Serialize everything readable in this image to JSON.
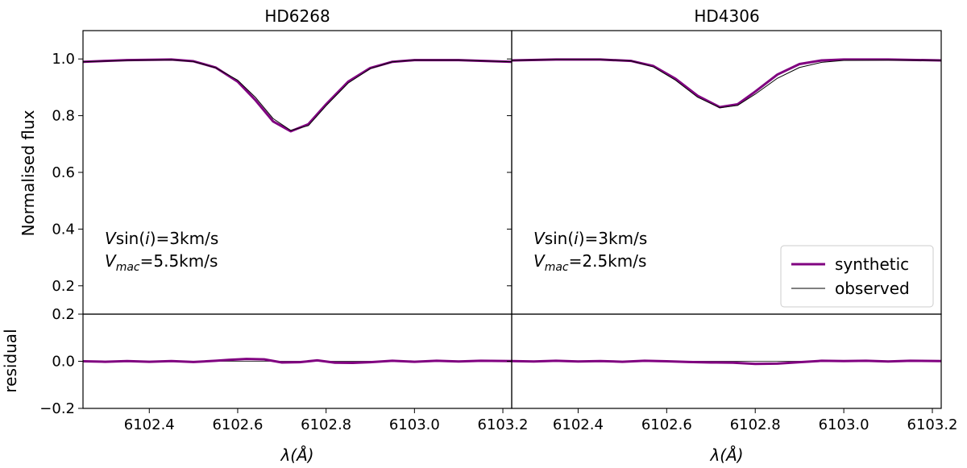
{
  "chart_data": {
    "type": "line",
    "titles": [
      "HD6268",
      "HD4306"
    ],
    "xlabel": "λ(Å)",
    "ylabel_top": "Normalised flux",
    "ylabel_bottom": "residual",
    "xlim": [
      6102.25,
      6103.22
    ],
    "ylim_top": [
      0.1,
      1.1
    ],
    "ylim_bottom": [
      -0.2,
      0.2
    ],
    "x_ticks": [
      {
        "value": 6102.4,
        "label": "6102.4"
      },
      {
        "value": 6102.6,
        "label": "6102.6"
      },
      {
        "value": 6102.8,
        "label": "6102.8"
      },
      {
        "value": 6103.0,
        "label": "6103.0"
      },
      {
        "value": 6103.2,
        "label": "6103.2"
      }
    ],
    "y_ticks_top": [
      {
        "value": 0.2,
        "label": "0.2"
      },
      {
        "value": 0.4,
        "label": "0.4"
      },
      {
        "value": 0.6,
        "label": "0.6"
      },
      {
        "value": 0.8,
        "label": "0.8"
      },
      {
        "value": 1.0,
        "label": "1.0"
      }
    ],
    "y_ticks_bottom": [
      {
        "value": -0.2,
        "label": "−0.2"
      },
      {
        "value": 0.0,
        "label": "0.0"
      },
      {
        "value": 0.2,
        "label": "0.2"
      }
    ],
    "legend": {
      "placement": "lower-right of right panel",
      "entries": [
        {
          "label": "synthetic",
          "color": "#800080"
        },
        {
          "label": "observed",
          "color": "#000000"
        }
      ]
    },
    "panels": [
      {
        "title": "HD6268",
        "annotations": {
          "vsini_value": "=3km/s",
          "vmac_value": "=5.5km/s"
        },
        "series": [
          {
            "name": "synthetic",
            "color": "#800080",
            "x": [
              6102.25,
              6102.35,
              6102.45,
              6102.5,
              6102.55,
              6102.6,
              6102.64,
              6102.68,
              6102.72,
              6102.76,
              6102.8,
              6102.85,
              6102.9,
              6102.95,
              6103.0,
              6103.1,
              6103.22
            ],
            "y": [
              0.99,
              0.996,
              0.998,
              0.992,
              0.97,
              0.92,
              0.855,
              0.78,
              0.745,
              0.77,
              0.84,
              0.92,
              0.968,
              0.99,
              0.996,
              0.996,
              0.99
            ]
          },
          {
            "name": "observed",
            "color": "#000000",
            "x": [
              6102.25,
              6102.35,
              6102.45,
              6102.5,
              6102.55,
              6102.6,
              6102.64,
              6102.68,
              6102.72,
              6102.76,
              6102.8,
              6102.85,
              6102.9,
              6102.95,
              6103.0,
              6103.1,
              6103.22
            ],
            "y": [
              0.99,
              0.995,
              0.997,
              0.991,
              0.969,
              0.925,
              0.865,
              0.79,
              0.748,
              0.765,
              0.835,
              0.915,
              0.966,
              0.99,
              0.996,
              0.996,
              0.99
            ]
          }
        ],
        "residual": {
          "x": [
            6102.25,
            6102.3,
            6102.35,
            6102.4,
            6102.45,
            6102.5,
            6102.55,
            6102.58,
            6102.62,
            6102.66,
            6102.7,
            6102.74,
            6102.78,
            6102.82,
            6102.86,
            6102.9,
            6102.95,
            6103.0,
            6103.05,
            6103.1,
            6103.15,
            6103.22
          ],
          "y": [
            0.0,
            -0.002,
            0.001,
            -0.002,
            0.001,
            -0.003,
            0.002,
            0.006,
            0.01,
            0.008,
            -0.005,
            -0.004,
            0.004,
            -0.006,
            -0.007,
            -0.004,
            0.002,
            -0.002,
            0.002,
            -0.001,
            0.002,
            0.001
          ]
        }
      },
      {
        "title": "HD4306",
        "annotations": {
          "vsini_value": "=3km/s",
          "vmac_value": "=2.5km/s"
        },
        "series": [
          {
            "name": "synthetic",
            "color": "#800080",
            "x": [
              6102.25,
              6102.35,
              6102.45,
              6102.52,
              6102.57,
              6102.62,
              6102.67,
              6102.72,
              6102.76,
              6102.8,
              6102.85,
              6102.9,
              6102.95,
              6103.0,
              6103.1,
              6103.22
            ],
            "y": [
              0.995,
              0.998,
              0.998,
              0.993,
              0.975,
              0.93,
              0.87,
              0.83,
              0.84,
              0.885,
              0.945,
              0.982,
              0.995,
              0.998,
              0.998,
              0.995
            ]
          },
          {
            "name": "observed",
            "color": "#000000",
            "x": [
              6102.25,
              6102.35,
              6102.45,
              6102.52,
              6102.57,
              6102.62,
              6102.67,
              6102.72,
              6102.76,
              6102.8,
              6102.85,
              6102.9,
              6102.95,
              6103.0,
              6103.1,
              6103.22
            ],
            "y": [
              0.995,
              0.998,
              0.998,
              0.993,
              0.972,
              0.925,
              0.865,
              0.828,
              0.836,
              0.876,
              0.932,
              0.97,
              0.988,
              0.995,
              0.996,
              0.995
            ]
          }
        ],
        "residual": {
          "x": [
            6102.25,
            6102.3,
            6102.35,
            6102.4,
            6102.45,
            6102.5,
            6102.55,
            6102.6,
            6102.65,
            6102.7,
            6102.75,
            6102.8,
            6102.85,
            6102.9,
            6102.95,
            6103.0,
            6103.05,
            6103.1,
            6103.15,
            6103.22
          ],
          "y": [
            0.001,
            -0.001,
            0.002,
            -0.001,
            0.001,
            -0.002,
            0.002,
            0.0,
            -0.003,
            -0.005,
            -0.006,
            -0.011,
            -0.01,
            -0.004,
            0.002,
            0.001,
            0.002,
            -0.001,
            0.002,
            0.001
          ]
        }
      }
    ]
  }
}
